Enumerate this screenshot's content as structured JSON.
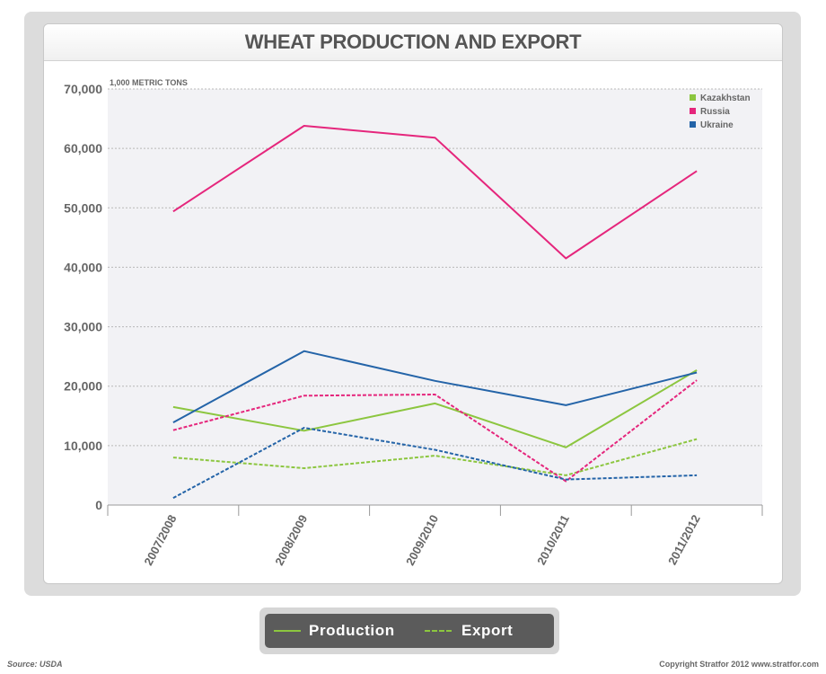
{
  "chart_data": {
    "type": "line",
    "title": "WHEAT PRODUCTION AND EXPORT",
    "unit_label": "1,000 METRIC TONS",
    "categories": [
      "2007/2008",
      "2008/2009",
      "2009/2010",
      "2010/2011",
      "2011/2012"
    ],
    "ylim": [
      0,
      70000
    ],
    "yticks": [
      0,
      10000,
      20000,
      30000,
      40000,
      50000,
      60000,
      70000
    ],
    "ytick_labels": [
      "0",
      "10,000",
      "20,000",
      "30,000",
      "40,000",
      "50,000",
      "60,000",
      "70,000"
    ],
    "grid": true,
    "legend_position": "top-right",
    "legend": [
      {
        "name": "Kazakhstan",
        "color": "#8cc63f"
      },
      {
        "name": "Russia",
        "color": "#e5267c"
      },
      {
        "name": "Ukraine",
        "color": "#2464a8"
      }
    ],
    "line_styles": [
      {
        "name": "Production",
        "style": "solid"
      },
      {
        "name": "Export",
        "style": "dashed"
      }
    ],
    "series": [
      {
        "country": "Kazakhstan",
        "measure": "Production",
        "color": "#8cc63f",
        "style": "solid",
        "values": [
          16500,
          12500,
          17100,
          9700,
          22700
        ]
      },
      {
        "country": "Russia",
        "measure": "Production",
        "color": "#e5267c",
        "style": "solid",
        "values": [
          49400,
          63800,
          61800,
          41500,
          56200
        ]
      },
      {
        "country": "Ukraine",
        "measure": "Production",
        "color": "#2464a8",
        "style": "solid",
        "values": [
          13900,
          25900,
          20900,
          16800,
          22300
        ]
      },
      {
        "country": "Kazakhstan",
        "measure": "Export",
        "color": "#8cc63f",
        "style": "dashed",
        "values": [
          8000,
          6200,
          8300,
          5000,
          11100
        ]
      },
      {
        "country": "Russia",
        "measure": "Export",
        "color": "#e5267c",
        "style": "dashed",
        "values": [
          12600,
          18400,
          18600,
          4000,
          21000
        ]
      },
      {
        "country": "Ukraine",
        "measure": "Export",
        "color": "#2464a8",
        "style": "dashed",
        "values": [
          1200,
          13000,
          9300,
          4300,
          5000
        ]
      }
    ]
  },
  "footer": {
    "source": "Source: USDA",
    "copyright": "Copyright Stratfor 2012   www.stratfor.com"
  }
}
